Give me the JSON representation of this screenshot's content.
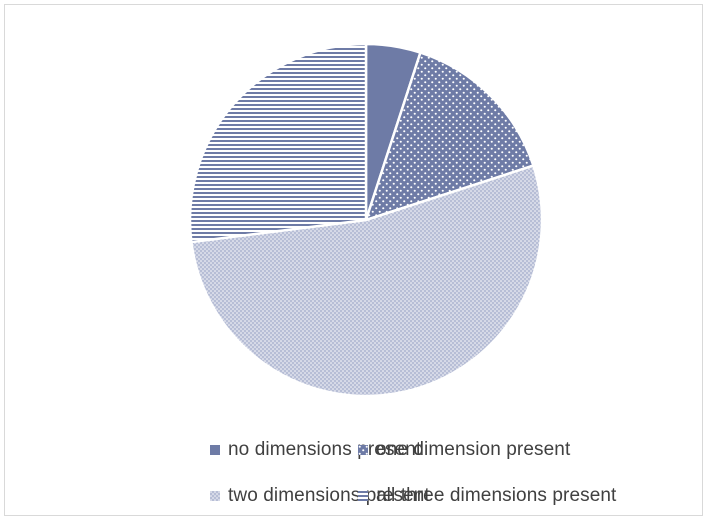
{
  "chart_data": {
    "type": "pie",
    "categories": [
      "no dimensions present",
      "one dimension present",
      "two dimensions present",
      "all three dimensions present"
    ],
    "values": [
      5,
      15,
      53,
      27
    ],
    "unit": "percent",
    "start_angle_deg": 0,
    "direction": "clockwise",
    "legend_position": "bottom",
    "title": "",
    "colors": [
      "#6e7ba6",
      "#6e7ba6",
      "#b9c0d7",
      "#6e7ba6"
    ],
    "fill_patterns": [
      "solid",
      "dots-dense-on-dark",
      "dots-small-light",
      "horizontal-stripes"
    ]
  }
}
